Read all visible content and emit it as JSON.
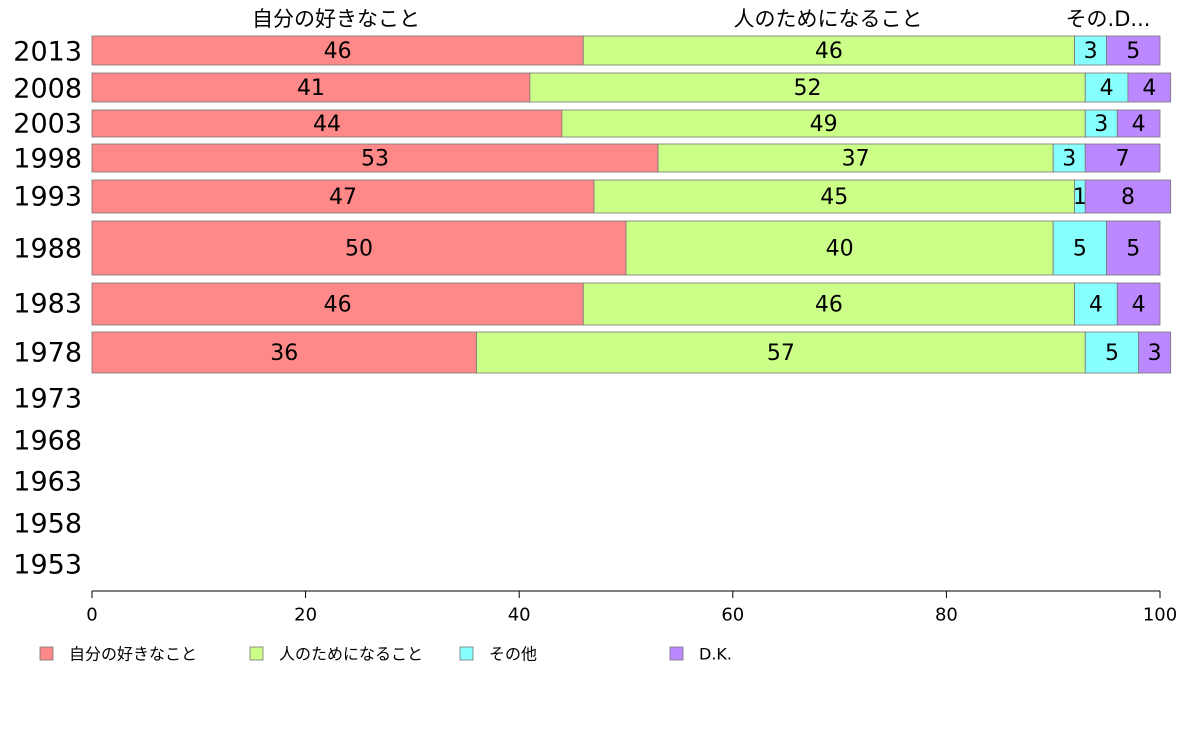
{
  "chart_data": {
    "type": "bar",
    "orientation": "horizontal",
    "stacked": true,
    "variable_height": true,
    "categories": [
      "2013",
      "2008",
      "2003",
      "1998",
      "1993",
      "1988",
      "1983",
      "1978",
      "1973",
      "1968",
      "1963",
      "1958",
      "1953"
    ],
    "series": [
      {
        "name": "自分の好きなこと",
        "color": "#ff8888",
        "values": [
          46,
          41,
          44,
          53,
          47,
          50,
          46,
          36,
          null,
          null,
          null,
          null,
          null
        ]
      },
      {
        "name": "人のためになること",
        "color": "#ccff88",
        "values": [
          46,
          52,
          49,
          37,
          45,
          40,
          46,
          57,
          null,
          null,
          null,
          null,
          null
        ]
      },
      {
        "name": "その他",
        "color": "#88ffff",
        "values": [
          3,
          4,
          3,
          3,
          1,
          5,
          4,
          5,
          null,
          null,
          null,
          null,
          null
        ]
      },
      {
        "name": "D.K.",
        "color": "#bb88ff",
        "values": [
          5,
          4,
          4,
          7,
          8,
          5,
          4,
          3,
          null,
          null,
          null,
          null,
          null
        ]
      }
    ],
    "top_labels": [
      "自分の好きなこと",
      "人のためになること",
      "その.D..."
    ],
    "xlim": [
      0,
      100
    ],
    "xticks": [
      0,
      20,
      40,
      60,
      80,
      100
    ],
    "legend_position": "bottom"
  }
}
